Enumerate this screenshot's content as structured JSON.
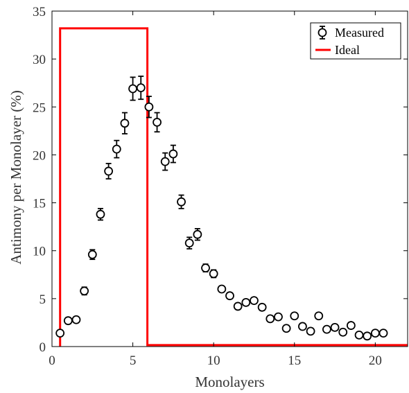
{
  "chart_data": {
    "type": "scatter",
    "xlabel": "Monolayers",
    "ylabel": "Antimony per Monolayer (%)",
    "xlim": [
      0,
      22
    ],
    "ylim": [
      0,
      35
    ],
    "xticks": [
      0,
      5,
      10,
      15,
      20
    ],
    "yticks": [
      0,
      5,
      10,
      15,
      20,
      25,
      30,
      35
    ],
    "grid": false,
    "legend_position": "top-right",
    "series": [
      {
        "name": "Measured",
        "style": "markers-with-errorbars",
        "color": "#000000",
        "x": [
          0.5,
          1.0,
          1.5,
          2.0,
          2.5,
          3.0,
          3.5,
          4.0,
          4.5,
          5.0,
          5.5,
          6.0,
          6.5,
          7.0,
          7.5,
          8.0,
          8.5,
          9.0,
          9.5,
          10.0,
          10.5,
          11.0,
          11.5,
          12.0,
          12.5,
          13.0,
          13.5,
          14.0,
          14.5,
          15.0,
          15.5,
          16.0,
          16.5,
          17.0,
          17.5,
          18.0,
          18.5,
          19.0,
          19.5,
          20.0,
          20.5
        ],
        "y": [
          1.4,
          2.7,
          2.8,
          5.8,
          9.6,
          13.8,
          18.3,
          20.6,
          23.3,
          26.9,
          27.0,
          25.0,
          23.4,
          19.3,
          20.1,
          15.1,
          10.8,
          11.7,
          8.2,
          7.6,
          6.0,
          5.3,
          4.2,
          4.6,
          4.8,
          4.1,
          2.9,
          3.1,
          1.9,
          3.2,
          2.1,
          1.6,
          3.2,
          1.8,
          2.0,
          1.5,
          2.2,
          1.2,
          1.1,
          1.4,
          1.4
        ],
        "yerr": [
          0.3,
          0.3,
          0.3,
          0.4,
          0.5,
          0.6,
          0.8,
          0.9,
          1.1,
          1.2,
          1.2,
          1.1,
          1.0,
          0.9,
          0.9,
          0.7,
          0.6,
          0.6,
          0.4,
          0.4,
          0.3,
          0.3,
          0.3,
          0.3,
          0.3,
          0.3,
          0.3,
          0.3,
          0.3,
          0.3,
          0.3,
          0.3,
          0.3,
          0.3,
          0.3,
          0.3,
          0.3,
          0.3,
          0.3,
          0.3,
          0.3
        ]
      },
      {
        "name": "Ideal",
        "style": "step-line",
        "color": "#ff0000",
        "x": [
          0.5,
          0.5,
          5.9,
          5.9,
          22
        ],
        "y": [
          0,
          33.2,
          33.2,
          0.15,
          0.15
        ]
      }
    ]
  }
}
